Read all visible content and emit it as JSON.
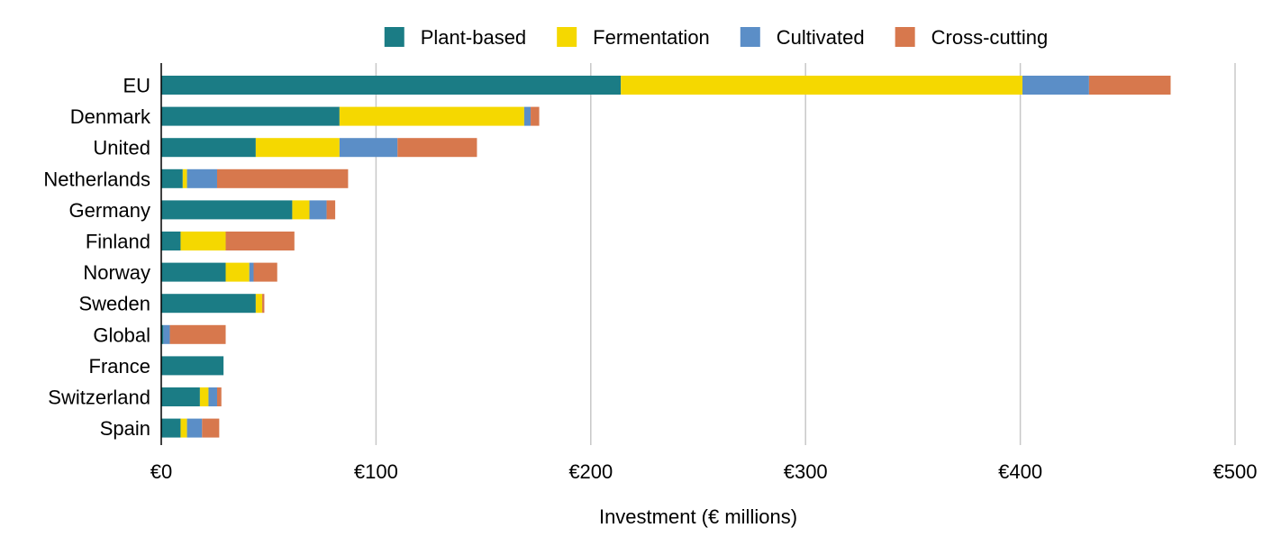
{
  "chart_data": {
    "type": "bar",
    "orientation": "horizontal",
    "stacked": true,
    "title": "",
    "xlabel": "Investment (€ millions)",
    "ylabel": "",
    "xlim": [
      0,
      500
    ],
    "x_ticks": [
      0,
      100,
      200,
      300,
      400,
      500
    ],
    "x_tick_labels": [
      "€0",
      "€100",
      "€200",
      "€300",
      "€400",
      "€500"
    ],
    "grid": "vertical",
    "legend_position": "top",
    "categories": [
      "EU",
      "Denmark",
      "United",
      "Netherlands",
      "Germany",
      "Finland",
      "Norway",
      "Sweden",
      "Global",
      "France",
      "Switzerland",
      "Spain"
    ],
    "series": [
      {
        "name": "Plant-based",
        "color": "#1b7c85",
        "values": [
          214,
          83,
          44,
          10,
          61,
          9,
          30,
          44,
          1,
          29,
          18,
          9
        ]
      },
      {
        "name": "Fermentation",
        "color": "#f5d800",
        "values": [
          187,
          86,
          39,
          2,
          8,
          21,
          11,
          3,
          0,
          0,
          4,
          3
        ]
      },
      {
        "name": "Cultivated",
        "color": "#5b8ec7",
        "values": [
          31,
          3,
          27,
          14,
          8,
          0,
          2,
          0,
          3,
          0,
          4,
          7
        ]
      },
      {
        "name": "Cross-cutting",
        "color": "#d7784d",
        "values": [
          38,
          4,
          37,
          61,
          4,
          32,
          11,
          1,
          26,
          0,
          2,
          8
        ]
      }
    ]
  }
}
